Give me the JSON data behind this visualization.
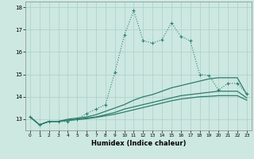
{
  "xlabel": "Humidex (Indice chaleur)",
  "background_color": "#cce8e0",
  "grid_color": "#aacfc8",
  "line_color": "#2e7d6e",
  "x_values": [
    0,
    1,
    2,
    3,
    4,
    5,
    6,
    7,
    8,
    9,
    10,
    11,
    12,
    13,
    14,
    15,
    16,
    17,
    18,
    19,
    20,
    21,
    22,
    23
  ],
  "series1": [
    13.1,
    12.75,
    12.9,
    12.9,
    12.9,
    13.0,
    13.25,
    13.45,
    13.65,
    15.1,
    16.75,
    17.85,
    16.5,
    16.4,
    16.55,
    17.3,
    16.7,
    16.5,
    15.0,
    14.95,
    14.3,
    14.6,
    14.6,
    14.15
  ],
  "series2": [
    13.1,
    12.75,
    12.9,
    12.9,
    13.0,
    13.05,
    13.1,
    13.2,
    13.35,
    13.5,
    13.65,
    13.85,
    14.0,
    14.1,
    14.25,
    14.4,
    14.5,
    14.6,
    14.7,
    14.8,
    14.85,
    14.85,
    14.85,
    14.1
  ],
  "series3": [
    13.1,
    12.75,
    12.9,
    12.9,
    12.95,
    13.0,
    13.05,
    13.1,
    13.2,
    13.3,
    13.45,
    13.55,
    13.65,
    13.75,
    13.85,
    13.95,
    14.05,
    14.1,
    14.15,
    14.2,
    14.25,
    14.25,
    14.25,
    13.95
  ],
  "series4": [
    13.1,
    12.75,
    12.9,
    12.9,
    12.95,
    12.98,
    13.02,
    13.08,
    13.15,
    13.22,
    13.32,
    13.42,
    13.52,
    13.62,
    13.72,
    13.82,
    13.9,
    13.95,
    14.0,
    14.02,
    14.05,
    14.05,
    14.05,
    13.85
  ],
  "ylim": [
    12.5,
    18.25
  ],
  "xlim": [
    -0.5,
    23.5
  ],
  "yticks": [
    13,
    14,
    15,
    16,
    17,
    18
  ],
  "xticks": [
    0,
    1,
    2,
    3,
    4,
    5,
    6,
    7,
    8,
    9,
    10,
    11,
    12,
    13,
    14,
    15,
    16,
    17,
    18,
    19,
    20,
    21,
    22,
    23
  ]
}
